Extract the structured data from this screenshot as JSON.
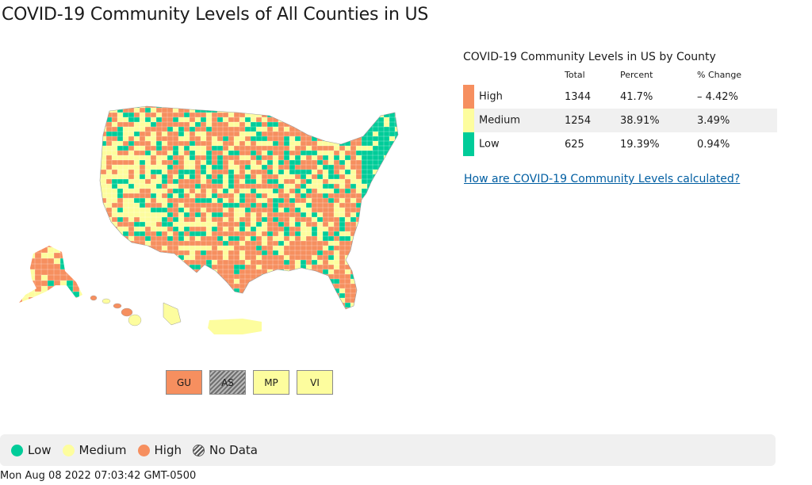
{
  "page": {
    "title": "COVID-19 Community Levels of All Counties in US",
    "timestamp": "Mon Aug 08 2022 07:03:42 GMT-0500"
  },
  "colors": {
    "high": "#f68f5f",
    "medium": "#fdfd9e",
    "low": "#00cc99",
    "no_data": "#8a8a8a"
  },
  "summary": {
    "title": "COVID-19 Community Levels in US by County",
    "headers": {
      "total": "Total",
      "percent": "Percent",
      "change": "% Change"
    },
    "rows": [
      {
        "level": "High",
        "total": "1344",
        "percent": "41.7%",
        "change": "– 4.42%"
      },
      {
        "level": "Medium",
        "total": "1254",
        "percent": "38.91%",
        "change": "3.49%"
      },
      {
        "level": "Low",
        "total": "625",
        "percent": "19.39%",
        "change": "0.94%"
      }
    ]
  },
  "link": {
    "label": "How are COVID-19 Community Levels calculated?"
  },
  "territories": [
    {
      "label": "GU",
      "level": "high"
    },
    {
      "label": "AS",
      "level": "no_data"
    },
    {
      "label": "MP",
      "level": "medium"
    },
    {
      "label": "VI",
      "level": "medium"
    }
  ],
  "legend": {
    "low": "Low",
    "medium": "Medium",
    "high": "High",
    "no_data": "No Data"
  }
}
